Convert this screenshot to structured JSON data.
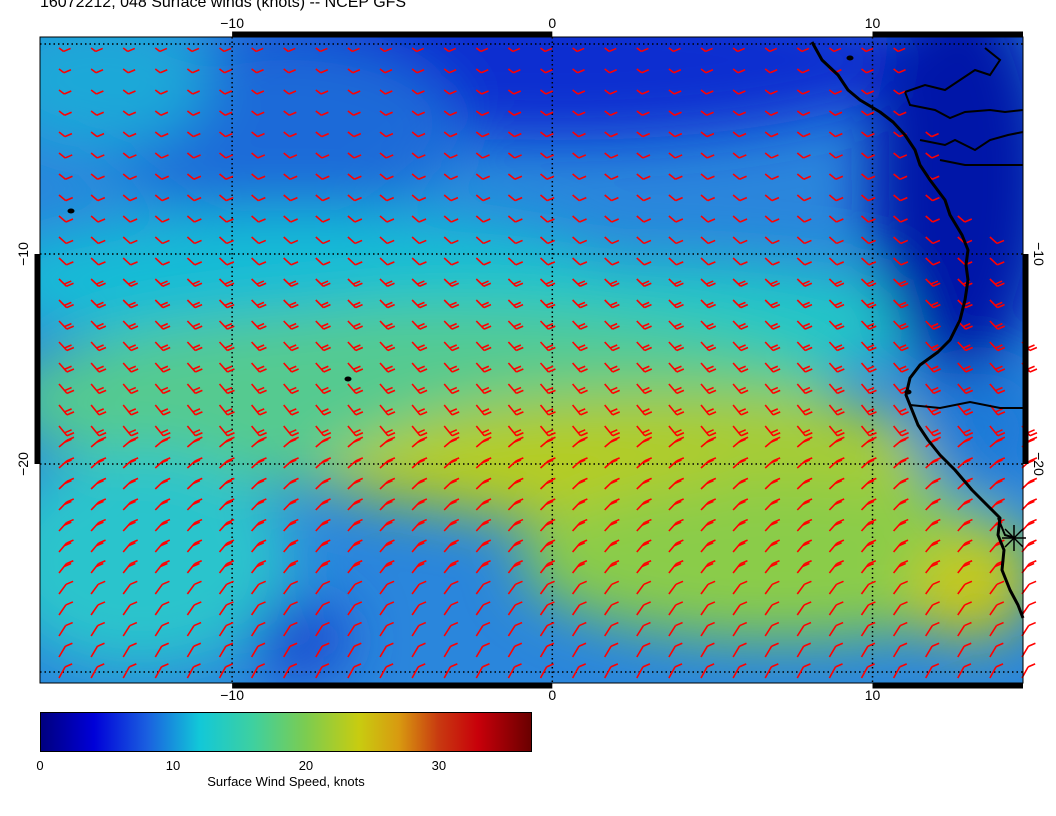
{
  "title": "16072212, 048 Surface winds (knots) -- NCEP GFS",
  "map": {
    "lon_range": [
      -16,
      14.7
    ],
    "lat_range": [
      -30,
      0
    ],
    "top_ticks": [
      {
        "value": -10,
        "label": "−10"
      },
      {
        "value": 0,
        "label": "0"
      },
      {
        "value": 10,
        "label": "10"
      }
    ],
    "bottom_ticks": [
      {
        "value": -10,
        "label": "−10"
      },
      {
        "value": 0,
        "label": "0"
      },
      {
        "value": 10,
        "label": "10"
      }
    ],
    "left_ticks": [
      {
        "value": -10,
        "label": "−10"
      },
      {
        "value": -20,
        "label": "−20"
      }
    ],
    "right_ticks": [
      {
        "value": -10,
        "label": "−10"
      },
      {
        "value": -20,
        "label": "−20"
      }
    ],
    "barb_color": "#ff0000",
    "coast_color": "#000000"
  },
  "colorbar": {
    "label": "Surface Wind Speed, knots",
    "range": [
      0,
      37
    ],
    "ticks": [
      {
        "value": 0,
        "label": "0"
      },
      {
        "value": 10,
        "label": "10"
      },
      {
        "value": 20,
        "label": "20"
      },
      {
        "value": 30,
        "label": "30"
      }
    ],
    "stops": [
      {
        "value": 0,
        "color": "#00007f"
      },
      {
        "value": 4,
        "color": "#0000d8"
      },
      {
        "value": 8,
        "color": "#1a5fe0"
      },
      {
        "value": 12,
        "color": "#12c8d8"
      },
      {
        "value": 16,
        "color": "#3ed0a0"
      },
      {
        "value": 20,
        "color": "#7ccc50"
      },
      {
        "value": 24,
        "color": "#c8cc10"
      },
      {
        "value": 27,
        "color": "#d89a10"
      },
      {
        "value": 30,
        "color": "#c83a10"
      },
      {
        "value": 33,
        "color": "#c8000a"
      },
      {
        "value": 37,
        "color": "#6a0000"
      }
    ]
  }
}
